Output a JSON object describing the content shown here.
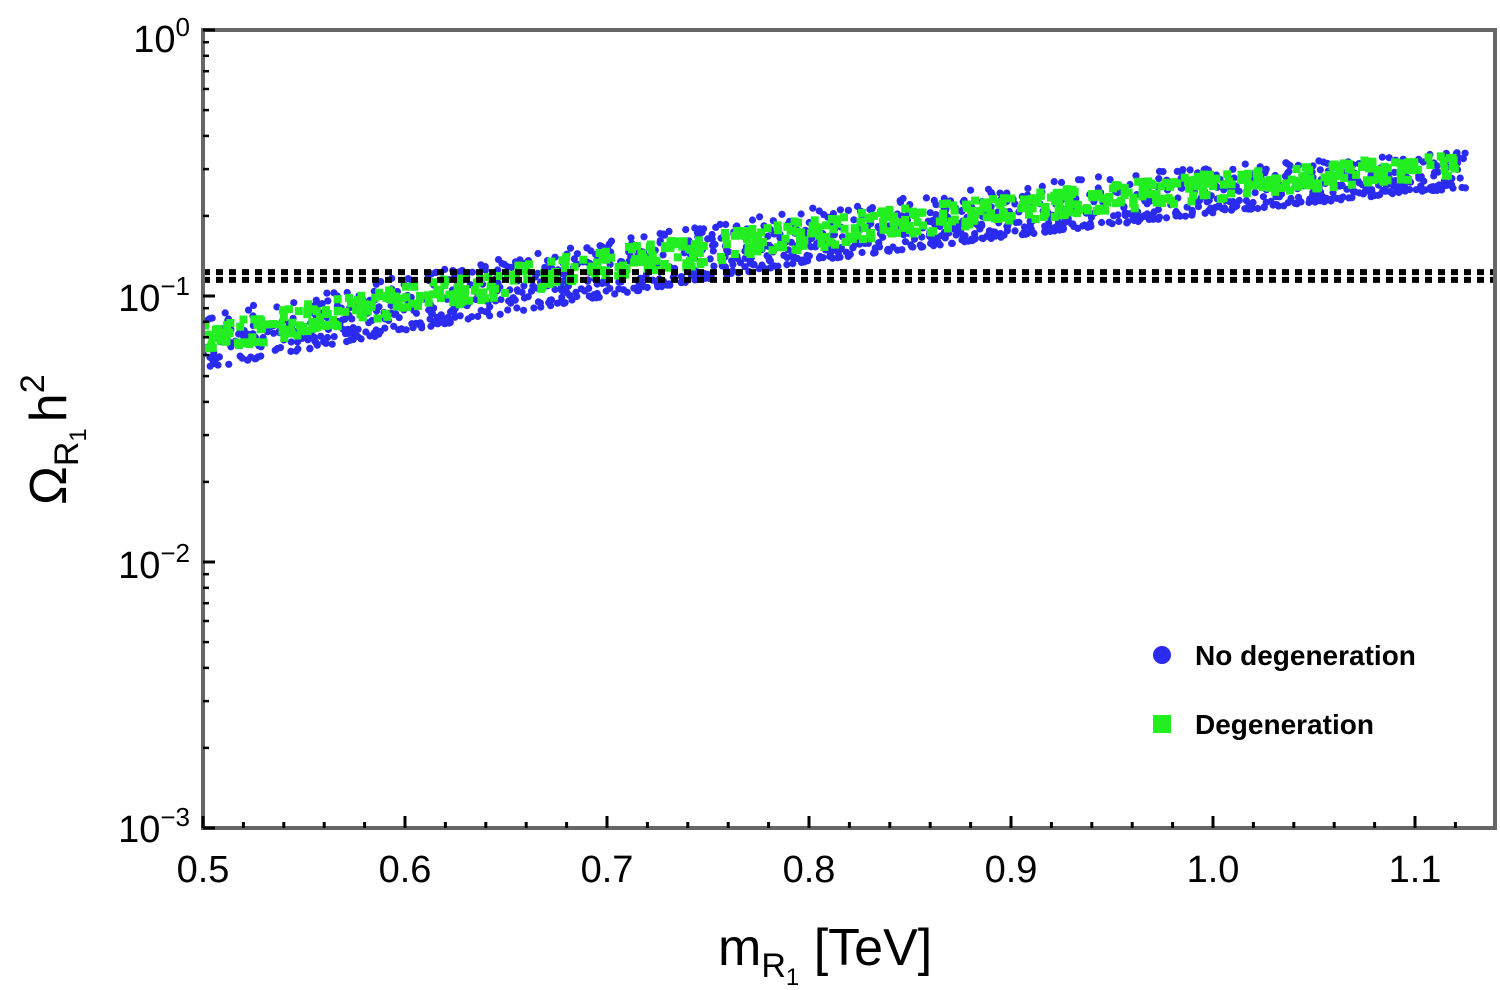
{
  "chart_data": {
    "type": "scatter",
    "title": "",
    "xlabel": {
      "main": "m",
      "sub": "R",
      "subsub": "1",
      "rest": " [TeV]"
    },
    "ylabel": {
      "main": "Ω",
      "sub": "R",
      "subsub": "1",
      "rest": "h",
      "sup": "2"
    },
    "xlim": [
      0.5,
      1.14
    ],
    "ylim_log10": [
      -3,
      0
    ],
    "y_scale": "log",
    "x_ticks": [
      "0.5",
      "0.6",
      "0.7",
      "0.8",
      "0.9",
      "1.0",
      "1.1"
    ],
    "y_ticks": [
      {
        "base": "10",
        "exp": "0"
      },
      {
        "base": "10",
        "exp": "−1"
      },
      {
        "base": "10",
        "exp": "−2"
      },
      {
        "base": "10",
        "exp": "−3"
      }
    ],
    "reference_lines": [
      {
        "y": 0.115,
        "style": "dotted",
        "color": "#000000"
      },
      {
        "y": 0.123,
        "style": "dotted",
        "color": "#000000"
      }
    ],
    "series": [
      {
        "name": "No degeneration",
        "marker": "circle",
        "color": "#2b2bf0",
        "x_range": [
          0.5,
          1.125
        ],
        "band_lower": [
          [
            0.5,
            0.053
          ],
          [
            0.6,
            0.074
          ],
          [
            0.7,
            0.1
          ],
          [
            0.8,
            0.135
          ],
          [
            0.9,
            0.168
          ],
          [
            1.0,
            0.205
          ],
          [
            1.1,
            0.245
          ],
          [
            1.125,
            0.255
          ]
        ],
        "band_upper": [
          [
            0.5,
            0.085
          ],
          [
            0.6,
            0.12
          ],
          [
            0.7,
            0.16
          ],
          [
            0.8,
            0.215
          ],
          [
            0.9,
            0.26
          ],
          [
            1.0,
            0.31
          ],
          [
            1.1,
            0.34
          ],
          [
            1.125,
            0.35
          ]
        ],
        "count": 1400
      },
      {
        "name": "Degeneration",
        "marker": "square",
        "color": "#22ee22",
        "x_range": [
          0.5,
          1.12
        ],
        "band_lower": [
          [
            0.5,
            0.06
          ],
          [
            0.6,
            0.085
          ],
          [
            0.7,
            0.115
          ],
          [
            0.8,
            0.15
          ],
          [
            0.9,
            0.19
          ],
          [
            1.0,
            0.23
          ],
          [
            1.1,
            0.275
          ],
          [
            1.12,
            0.28
          ]
        ],
        "band_upper": [
          [
            0.5,
            0.078
          ],
          [
            0.6,
            0.11
          ],
          [
            0.7,
            0.15
          ],
          [
            0.8,
            0.195
          ],
          [
            0.9,
            0.24
          ],
          [
            1.0,
            0.29
          ],
          [
            1.1,
            0.335
          ],
          [
            1.12,
            0.34
          ]
        ],
        "count": 700
      }
    ],
    "legend": {
      "placement": "bottom-right"
    }
  }
}
